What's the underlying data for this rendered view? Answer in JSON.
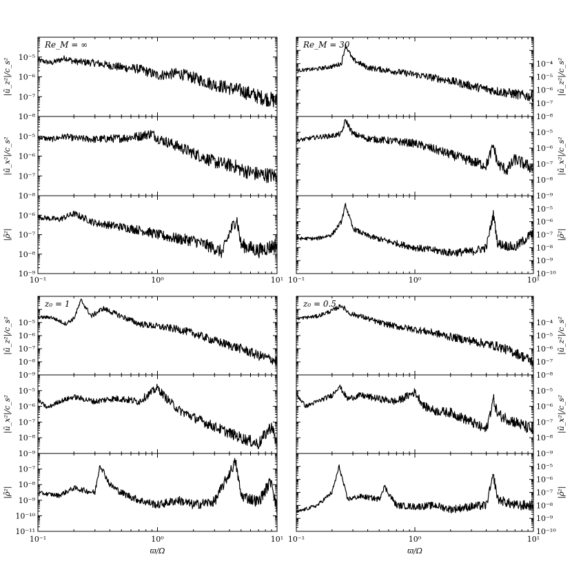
{
  "figure": {
    "xlabel": "ϖ/Ω",
    "x_tick_labels": [
      "10⁻¹",
      "10⁰",
      "10¹"
    ]
  },
  "chart_data": [
    {
      "type": "line",
      "group": "top-left",
      "panel": "upper",
      "title": "",
      "panel_label": "Re_M = ∞",
      "xlabel": "",
      "ylabel": "|ũ_z²|/c_s²",
      "xscale": "log",
      "yscale": "log",
      "xlim": [
        0.1,
        10
      ],
      "ylim": [
        1e-08,
        0.0001
      ],
      "y_tick_labels": [
        "10⁻⁸",
        "10⁻⁷",
        "10⁻⁶",
        "10⁻⁵"
      ],
      "series": [
        {
          "points": [
            [
              0.1,
              7e-06
            ],
            [
              0.13,
              5e-06
            ],
            [
              0.17,
              9e-06
            ],
            [
              0.2,
              6e-06
            ],
            [
              0.3,
              5e-06
            ],
            [
              0.5,
              3e-06
            ],
            [
              0.7,
              2.5e-06
            ],
            [
              1.0,
              1.2e-06
            ],
            [
              1.5,
              1.5e-06
            ],
            [
              2.0,
              9e-07
            ],
            [
              3.0,
              4e-07
            ],
            [
              5.0,
              2e-07
            ],
            [
              7.0,
              1e-07
            ],
            [
              10.0,
              6e-08
            ]
          ]
        }
      ]
    },
    {
      "type": "line",
      "group": "top-left",
      "panel": "middle",
      "title": "",
      "xlabel": "",
      "ylabel": "|ũ_x²|/c_s²",
      "xscale": "log",
      "yscale": "log",
      "xlim": [
        0.1,
        10
      ],
      "ylim": [
        1e-08,
        0.0001
      ],
      "y_tick_labels": [
        "10⁻⁸",
        "10⁻⁷",
        "10⁻⁶",
        "10⁻⁵"
      ],
      "series": [
        {
          "points": [
            [
              0.1,
              9e-06
            ],
            [
              0.13,
              7e-06
            ],
            [
              0.17,
              1e-05
            ],
            [
              0.2,
              8e-06
            ],
            [
              0.3,
              7e-06
            ],
            [
              0.5,
              8e-06
            ],
            [
              0.7,
              1e-05
            ],
            [
              0.9,
              1.4e-05
            ],
            [
              1.0,
              8e-06
            ],
            [
              1.5,
              3e-06
            ],
            [
              2.0,
              1.4e-06
            ],
            [
              3.0,
              5e-07
            ],
            [
              4.5,
              3e-07
            ],
            [
              5.0,
              2e-07
            ],
            [
              7.0,
              1.2e-07
            ],
            [
              10.0,
              1e-07
            ]
          ]
        }
      ]
    },
    {
      "type": "line",
      "group": "top-left",
      "panel": "lower",
      "title": "",
      "xlabel": "ϖ/Ω",
      "ylabel": "|ρ̃²|",
      "xscale": "log",
      "yscale": "log",
      "xlim": [
        0.1,
        10
      ],
      "ylim": [
        1e-09,
        1e-05
      ],
      "y_tick_labels": [
        "10⁻⁹",
        "10⁻⁸",
        "10⁻⁷",
        "10⁻⁶"
      ],
      "series": [
        {
          "points": [
            [
              0.1,
              8e-07
            ],
            [
              0.15,
              6e-07
            ],
            [
              0.2,
              1.2e-06
            ],
            [
              0.3,
              4e-07
            ],
            [
              0.5,
              2.5e-07
            ],
            [
              0.8,
              1.5e-07
            ],
            [
              1.0,
              1e-07
            ],
            [
              1.5,
              6e-08
            ],
            [
              2.0,
              5e-08
            ],
            [
              3.0,
              2e-08
            ],
            [
              3.5,
              1.2e-08
            ],
            [
              4.0,
              1.2e-07
            ],
            [
              4.6,
              7e-07
            ],
            [
              5.0,
              3e-08
            ],
            [
              7.0,
              1.5e-08
            ],
            [
              10.0,
              3e-08
            ]
          ]
        }
      ]
    },
    {
      "type": "line",
      "group": "top-right",
      "panel": "upper",
      "title": "",
      "panel_label": "Re_M = 30",
      "xlabel": "",
      "ylabel": "|ũ_z²|/c_s²",
      "xscale": "log",
      "yscale": "log",
      "xlim": [
        0.1,
        10
      ],
      "ylim": [
        1e-09,
        0.001
      ],
      "y_tick_labels": [
        "10⁻⁸",
        "10⁻⁷",
        "10⁻⁶",
        "10⁻⁵",
        "10⁻⁴"
      ],
      "series": [
        {
          "points": [
            [
              0.1,
              3e-06
            ],
            [
              0.15,
              4e-06
            ],
            [
              0.2,
              6e-06
            ],
            [
              0.24,
              1e-05
            ],
            [
              0.26,
              0.00025
            ],
            [
              0.3,
              2e-05
            ],
            [
              0.4,
              5e-06
            ],
            [
              0.6,
              3e-06
            ],
            [
              1.0,
              1.5e-06
            ],
            [
              1.5,
              8e-07
            ],
            [
              2.0,
              5e-07
            ],
            [
              3.0,
              2e-07
            ],
            [
              5.0,
              8e-08
            ],
            [
              7.0,
              5e-08
            ],
            [
              10.0,
              3e-08
            ]
          ]
        }
      ]
    },
    {
      "type": "line",
      "group": "top-right",
      "panel": "middle",
      "title": "",
      "xlabel": "",
      "ylabel": "|ũ_x²|/c_s²",
      "xscale": "log",
      "yscale": "log",
      "xlim": [
        0.1,
        10
      ],
      "ylim": [
        1e-09,
        0.0001
      ],
      "y_tick_labels": [
        "10⁻⁹",
        "10⁻⁸",
        "10⁻⁷",
        "10⁻⁶",
        "10⁻⁵"
      ],
      "series": [
        {
          "points": [
            [
              0.1,
              3e-06
            ],
            [
              0.15,
              5e-06
            ],
            [
              0.2,
              6e-06
            ],
            [
              0.24,
              8e-06
            ],
            [
              0.26,
              6e-05
            ],
            [
              0.3,
              8e-06
            ],
            [
              0.4,
              4e-06
            ],
            [
              0.6,
              3e-06
            ],
            [
              1.0,
              2e-06
            ],
            [
              1.5,
              8e-07
            ],
            [
              2.0,
              4e-07
            ],
            [
              3.0,
              1.5e-07
            ],
            [
              4.0,
              8e-08
            ],
            [
              4.6,
              1.5e-06
            ],
            [
              5.0,
              1e-07
            ],
            [
              6.0,
              4e-08
            ],
            [
              7.0,
              2e-07
            ],
            [
              10.0,
              5e-08
            ]
          ]
        }
      ]
    },
    {
      "type": "line",
      "group": "top-right",
      "panel": "lower",
      "title": "",
      "xlabel": "ϖ/Ω",
      "ylabel": "|ρ̃²|",
      "xscale": "log",
      "yscale": "log",
      "xlim": [
        0.1,
        10
      ],
      "ylim": [
        1e-10,
        0.0001
      ],
      "y_tick_labels": [
        "10⁻¹⁰",
        "10⁻⁹",
        "10⁻⁸",
        "10⁻⁷",
        "10⁻⁶",
        "10⁻⁵"
      ],
      "series": [
        {
          "points": [
            [
              0.1,
              5e-08
            ],
            [
              0.15,
              5e-08
            ],
            [
              0.2,
              1e-07
            ],
            [
              0.24,
              1e-06
            ],
            [
              0.26,
              2e-05
            ],
            [
              0.3,
              3e-07
            ],
            [
              0.4,
              8e-08
            ],
            [
              0.6,
              3e-08
            ],
            [
              1.0,
              1e-08
            ],
            [
              1.5,
              6e-09
            ],
            [
              2.0,
              4e-09
            ],
            [
              3.0,
              5e-09
            ],
            [
              4.0,
              1e-08
            ],
            [
              4.6,
              4e-06
            ],
            [
              5.0,
              2e-08
            ],
            [
              7.0,
              1e-08
            ],
            [
              10.0,
              1.5e-07
            ]
          ]
        }
      ]
    },
    {
      "type": "line",
      "group": "bottom-left",
      "panel": "upper",
      "title": "",
      "panel_label": "z₀ = 1",
      "xlabel": "",
      "ylabel": "|ũ_z²|/c_s²",
      "xscale": "log",
      "yscale": "log",
      "xlim": [
        0.1,
        10
      ],
      "ylim": [
        1e-10,
        0.0001
      ],
      "y_tick_labels": [
        "10⁻⁹",
        "10⁻⁸",
        "10⁻⁷",
        "10⁻⁶",
        "10⁻⁵"
      ],
      "series": [
        {
          "points": [
            [
              0.1,
              2.5e-06
            ],
            [
              0.13,
              2.5e-06
            ],
            [
              0.17,
              8e-07
            ],
            [
              0.2,
              2e-06
            ],
            [
              0.23,
              5e-05
            ],
            [
              0.28,
              3e-06
            ],
            [
              0.35,
              1.2e-05
            ],
            [
              0.5,
              3e-06
            ],
            [
              0.7,
              8e-07
            ],
            [
              1.0,
              5e-07
            ],
            [
              1.5,
              3e-07
            ],
            [
              2.0,
              1.5e-07
            ],
            [
              3.0,
              4e-08
            ],
            [
              5.0,
              1e-08
            ],
            [
              7.0,
              3e-09
            ],
            [
              10.0,
              1.2e-09
            ]
          ]
        }
      ]
    },
    {
      "type": "line",
      "group": "bottom-left",
      "panel": "middle",
      "title": "",
      "xlabel": "",
      "ylabel": "|ũ_x²|/c_s²",
      "xscale": "log",
      "yscale": "log",
      "xlim": [
        0.1,
        10
      ],
      "ylim": [
        1e-09,
        0.0001
      ],
      "y_tick_labels": [
        "10⁻⁹",
        "10⁻⁸",
        "10⁻⁷",
        "10⁻⁶",
        "10⁻⁵"
      ],
      "series": [
        {
          "points": [
            [
              0.1,
              2.5e-06
            ],
            [
              0.12,
              8e-07
            ],
            [
              0.15,
              2e-06
            ],
            [
              0.2,
              4e-06
            ],
            [
              0.3,
              2e-06
            ],
            [
              0.4,
              3e-06
            ],
            [
              0.5,
              3e-06
            ],
            [
              0.7,
              2e-06
            ],
            [
              1.0,
              1.5e-05
            ],
            [
              1.2,
              3e-06
            ],
            [
              1.5,
              6e-07
            ],
            [
              2.0,
              2e-07
            ],
            [
              3.0,
              5e-08
            ],
            [
              5.0,
              1e-08
            ],
            [
              7.0,
              4e-09
            ],
            [
              9.0,
              6e-08
            ],
            [
              10.0,
              3e-09
            ]
          ]
        }
      ]
    },
    {
      "type": "line",
      "group": "bottom-left",
      "panel": "lower",
      "title": "",
      "xlabel": "ϖ/Ω",
      "ylabel": "|ρ̃²|",
      "xscale": "log",
      "yscale": "log",
      "xlim": [
        0.1,
        10
      ],
      "ylim": [
        1e-11,
        1e-06
      ],
      "y_tick_labels": [
        "10⁻¹¹",
        "10⁻¹⁰",
        "10⁻⁹",
        "10⁻⁸",
        "10⁻⁷"
      ],
      "series": [
        {
          "points": [
            [
              0.1,
              3e-09
            ],
            [
              0.15,
              2e-09
            ],
            [
              0.2,
              6e-09
            ],
            [
              0.3,
              3e-09
            ],
            [
              0.33,
              2e-07
            ],
            [
              0.4,
              1e-08
            ],
            [
              0.5,
              3e-09
            ],
            [
              0.7,
              1e-09
            ],
            [
              1.0,
              5e-10
            ],
            [
              1.5,
              1e-09
            ],
            [
              2.0,
              5e-10
            ],
            [
              3.0,
              8e-10
            ],
            [
              4.5,
              3e-07
            ],
            [
              5.0,
              2e-09
            ],
            [
              7.0,
              8e-10
            ],
            [
              9.0,
              2e-08
            ],
            [
              10.0,
              2e-10
            ]
          ]
        }
      ]
    },
    {
      "type": "line",
      "group": "bottom-right",
      "panel": "upper",
      "title": "",
      "panel_label": "z₀ = 0.5",
      "xlabel": "",
      "ylabel": "|ũ_z²|/c_s²",
      "xscale": "log",
      "yscale": "log",
      "xlim": [
        0.1,
        10
      ],
      "ylim": [
        1e-09,
        0.001
      ],
      "y_tick_labels": [
        "10⁻⁸",
        "10⁻⁷",
        "10⁻⁶",
        "10⁻⁵",
        "10⁻⁴"
      ],
      "series": [
        {
          "points": [
            [
              0.1,
              2e-05
            ],
            [
              0.15,
              3e-05
            ],
            [
              0.2,
              8e-05
            ],
            [
              0.24,
              0.0002
            ],
            [
              0.28,
              5e-05
            ],
            [
              0.35,
              3e-05
            ],
            [
              0.5,
              1e-05
            ],
            [
              0.7,
              5e-06
            ],
            [
              1.0,
              3e-06
            ],
            [
              1.5,
              1.5e-06
            ],
            [
              2.0,
              8e-07
            ],
            [
              3.0,
              4e-07
            ],
            [
              5.0,
              1.5e-07
            ],
            [
              7.0,
              5e-08
            ],
            [
              10.0,
              1e-08
            ]
          ]
        }
      ]
    },
    {
      "type": "line",
      "group": "bottom-right",
      "panel": "middle",
      "title": "",
      "xlabel": "",
      "ylabel": "|ũ_x²|/c_s²",
      "xscale": "log",
      "yscale": "log",
      "xlim": [
        0.1,
        10
      ],
      "ylim": [
        1e-09,
        0.0001
      ],
      "y_tick_labels": [
        "10⁻⁹",
        "10⁻⁸",
        "10⁻⁷",
        "10⁻⁶",
        "10⁻⁵"
      ],
      "series": [
        {
          "points": [
            [
              0.1,
              6e-06
            ],
            [
              0.12,
              1e-06
            ],
            [
              0.15,
              2e-06
            ],
            [
              0.2,
              5e-06
            ],
            [
              0.23,
              2e-05
            ],
            [
              0.27,
              3e-06
            ],
            [
              0.35,
              5e-06
            ],
            [
              0.5,
              3e-06
            ],
            [
              0.7,
              2e-06
            ],
            [
              1.0,
              8e-06
            ],
            [
              1.2,
              1e-06
            ],
            [
              1.5,
              5e-07
            ],
            [
              2.0,
              4e-07
            ],
            [
              3.0,
              1e-07
            ],
            [
              4.0,
              3e-08
            ],
            [
              4.6,
              3e-06
            ],
            [
              5.0,
              3e-07
            ],
            [
              7.0,
              1e-07
            ],
            [
              10.0,
              3e-08
            ]
          ]
        }
      ]
    },
    {
      "type": "line",
      "group": "bottom-right",
      "panel": "lower",
      "title": "",
      "xlabel": "ϖ/Ω",
      "ylabel": "|ρ̃²|",
      "xscale": "log",
      "yscale": "log",
      "xlim": [
        0.1,
        10
      ],
      "ylim": [
        1e-10,
        0.0001
      ],
      "y_tick_labels": [
        "10⁻¹⁰",
        "10⁻⁹",
        "10⁻⁸",
        "10⁻⁷",
        "10⁻⁶",
        "10⁻⁵"
      ],
      "series": [
        {
          "points": [
            [
              0.1,
              3e-09
            ],
            [
              0.15,
              1e-08
            ],
            [
              0.2,
              1e-07
            ],
            [
              0.23,
              1e-05
            ],
            [
              0.27,
              3e-08
            ],
            [
              0.35,
              5e-08
            ],
            [
              0.5,
              3e-08
            ],
            [
              0.55,
              3e-07
            ],
            [
              0.7,
              1e-08
            ],
            [
              1.0,
              8e-09
            ],
            [
              1.5,
              1e-08
            ],
            [
              2.0,
              5e-09
            ],
            [
              3.0,
              8e-09
            ],
            [
              4.0,
              1e-08
            ],
            [
              4.6,
              2e-06
            ],
            [
              5.0,
              3e-08
            ],
            [
              7.0,
              1e-08
            ],
            [
              10.0,
              1e-08
            ]
          ]
        }
      ]
    }
  ]
}
